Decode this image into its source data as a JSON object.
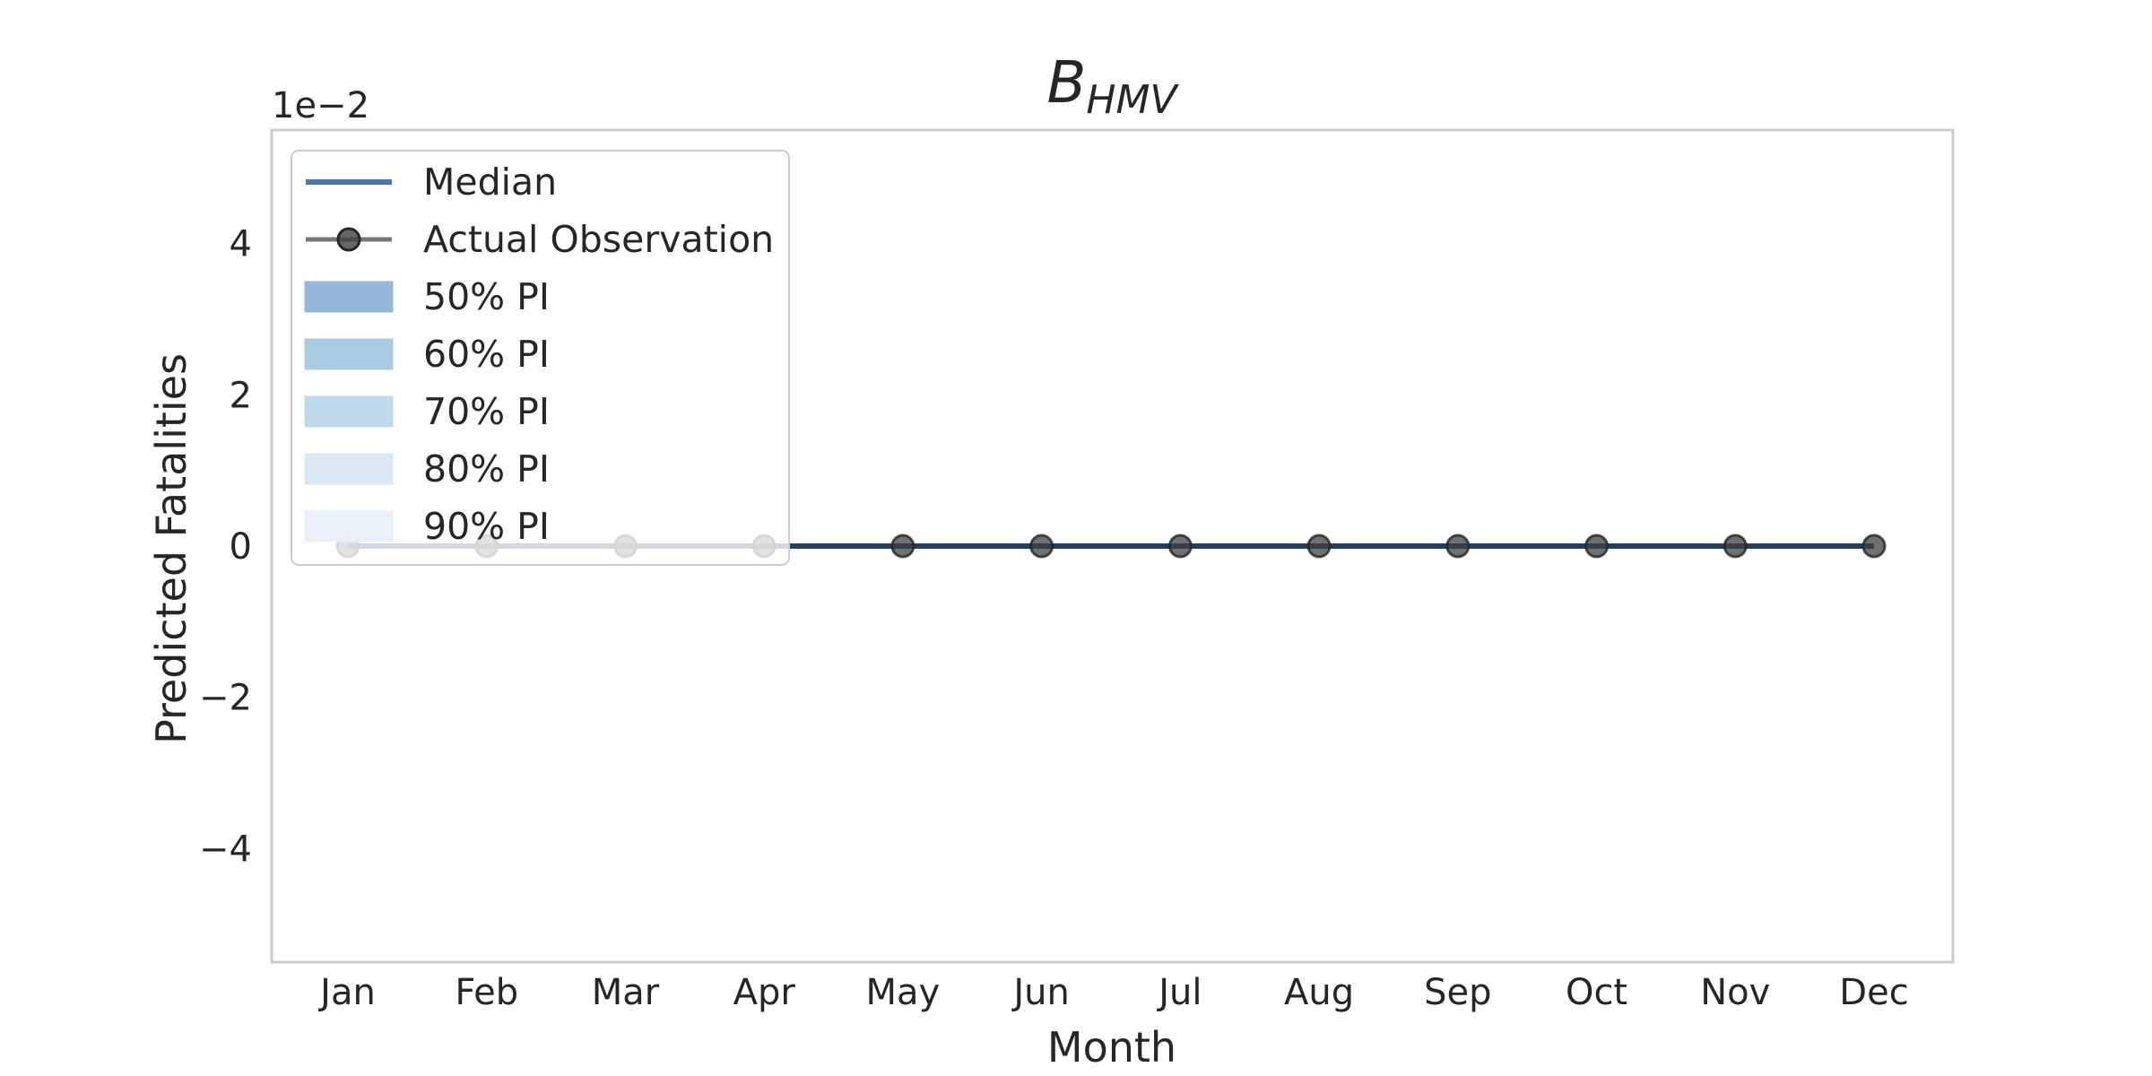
{
  "chart_data": {
    "type": "line",
    "title": "B",
    "title_subscript": "HMV",
    "xlabel": "Month",
    "ylabel": "Predicted Fatalities",
    "y_offset_text": "1e−2",
    "categories": [
      "Jan",
      "Feb",
      "Mar",
      "Apr",
      "May",
      "Jun",
      "Jul",
      "Aug",
      "Sep",
      "Oct",
      "Nov",
      "Dec"
    ],
    "ylim": [
      -0.055,
      0.055
    ],
    "yticks": [
      -0.04,
      -0.02,
      0,
      0.02,
      0.04
    ],
    "ytick_labels": [
      "−4",
      "−2",
      "0",
      "2",
      "4"
    ],
    "grid": false,
    "legend_position": "upper left",
    "series": [
      {
        "name": "Median",
        "values": [
          0,
          0,
          0,
          0,
          0,
          0,
          0,
          0,
          0,
          0,
          0,
          0
        ],
        "color": "#1f3f63"
      },
      {
        "name": "Actual Observation",
        "values": [
          0,
          0,
          0,
          0,
          0,
          0,
          0,
          0,
          0,
          0,
          0,
          0
        ],
        "color": "#404040"
      }
    ],
    "intervals": [
      {
        "name": "50% PI",
        "lower": [
          0,
          0,
          0,
          0,
          0,
          0,
          0,
          0,
          0,
          0,
          0,
          0
        ],
        "upper": [
          0,
          0,
          0,
          0,
          0,
          0,
          0,
          0,
          0,
          0,
          0,
          0
        ],
        "color": "#8fb4d8"
      },
      {
        "name": "60% PI",
        "lower": [
          0,
          0,
          0,
          0,
          0,
          0,
          0,
          0,
          0,
          0,
          0,
          0
        ],
        "upper": [
          0,
          0,
          0,
          0,
          0,
          0,
          0,
          0,
          0,
          0,
          0,
          0
        ],
        "color": "#a5c9e2"
      },
      {
        "name": "70% PI",
        "lower": [
          0,
          0,
          0,
          0,
          0,
          0,
          0,
          0,
          0,
          0,
          0,
          0
        ],
        "upper": [
          0,
          0,
          0,
          0,
          0,
          0,
          0,
          0,
          0,
          0,
          0,
          0
        ],
        "color": "#bcd9ea"
      },
      {
        "name": "80% PI",
        "lower": [
          0,
          0,
          0,
          0,
          0,
          0,
          0,
          0,
          0,
          0,
          0,
          0
        ],
        "upper": [
          0,
          0,
          0,
          0,
          0,
          0,
          0,
          0,
          0,
          0,
          0,
          0
        ],
        "color": "#d9e7f3"
      },
      {
        "name": "90% PI",
        "lower": [
          0,
          0,
          0,
          0,
          0,
          0,
          0,
          0,
          0,
          0,
          0,
          0
        ],
        "upper": [
          0,
          0,
          0,
          0,
          0,
          0,
          0,
          0,
          0,
          0,
          0,
          0
        ],
        "color": "#e9f0f7"
      }
    ],
    "colors": {
      "median_line": "#1f3f63",
      "median_legend": "#4a78ad",
      "observation": "#404040",
      "frame": "#cccccc"
    }
  }
}
